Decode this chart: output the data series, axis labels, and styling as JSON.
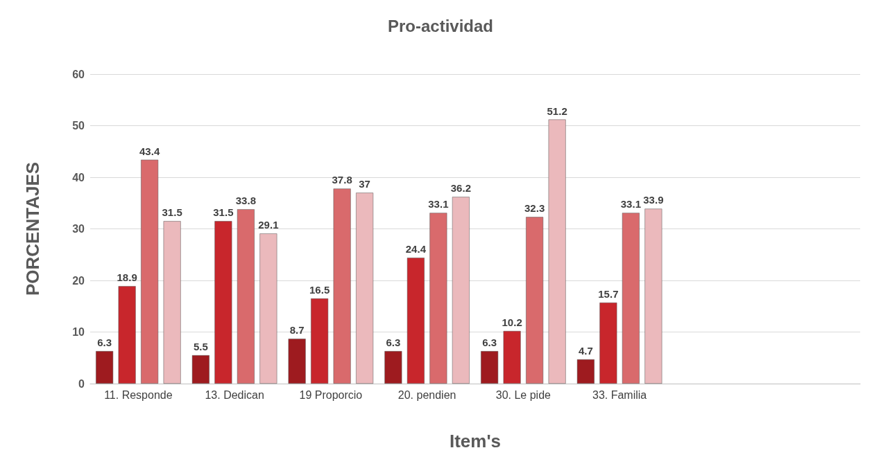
{
  "chart_data": {
    "type": "bar",
    "title": "Pro-actividad",
    "xlabel": "Item's",
    "ylabel": "PORCENTAJES",
    "categories": [
      "11. Responde",
      "13. Dedican",
      "19 Proporcio",
      "20. pendien",
      "30. Le pide",
      "33. Familia",
      null,
      null
    ],
    "series": [
      {
        "color": "#9e1b1f",
        "values": [
          6.3,
          5.5,
          8.7,
          6.3,
          6.3,
          4.7,
          null,
          null
        ]
      },
      {
        "color": "#c8262c",
        "values": [
          18.9,
          31.5,
          16.5,
          24.4,
          10.2,
          15.7,
          null,
          null
        ]
      },
      {
        "color": "#d96a6c",
        "values": [
          43.4,
          33.8,
          37.8,
          33.1,
          32.3,
          33.1,
          null,
          null
        ]
      },
      {
        "color": "#ebb9bc",
        "values": [
          31.5,
          29.1,
          37,
          36.2,
          51.2,
          33.9,
          null,
          null
        ]
      }
    ],
    "ylim": [
      0,
      60
    ],
    "yticks": [
      0,
      10,
      20,
      30,
      40,
      50,
      60
    ],
    "grid": "y",
    "data_labels": true
  }
}
